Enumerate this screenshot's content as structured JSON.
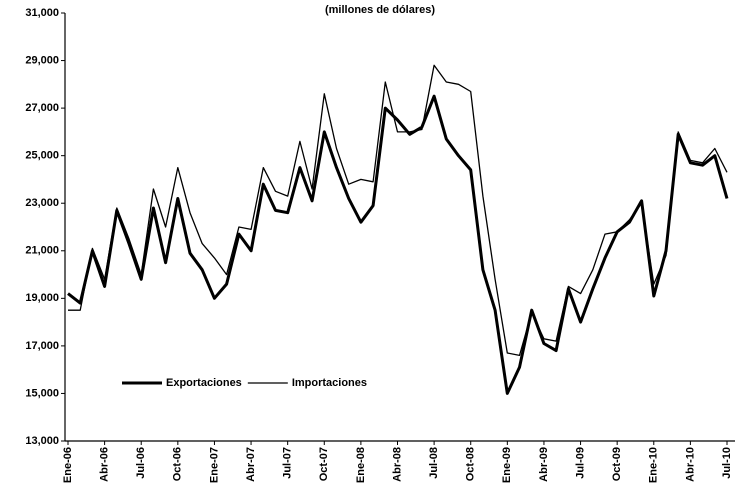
{
  "chart_data": {
    "type": "line",
    "title": "(millones de dólares)",
    "categories": [
      "Ene-06",
      null,
      null,
      "Abr-06",
      null,
      null,
      "Jul-06",
      null,
      null,
      "Oct-06",
      null,
      null,
      "Ene-07",
      null,
      null,
      "Abr-07",
      null,
      null,
      "Jul-07",
      null,
      null,
      "Oct-07",
      null,
      null,
      "Ene-08",
      null,
      null,
      "Abr-08",
      null,
      null,
      "Jul-08",
      null,
      null,
      "Oct-08",
      null,
      null,
      "Ene-09",
      null,
      null,
      "Abr-09",
      null,
      null,
      "Jul-09",
      null,
      null,
      "Oct-09",
      null,
      null,
      "Ene-10",
      null,
      null,
      "Abr-10",
      null,
      null,
      "Jul-10"
    ],
    "series": [
      {
        "name": "Exportaciones",
        "color": "#000000",
        "width": 3,
        "values": [
          19200,
          18800,
          21000,
          19500,
          22700,
          21300,
          19800,
          22800,
          20500,
          23200,
          20900,
          20200,
          19000,
          19600,
          21700,
          21000,
          23800,
          22700,
          22600,
          24500,
          23100,
          26000,
          24500,
          23200,
          22200,
          22900,
          27000,
          26500,
          25900,
          26200,
          27500,
          25700,
          25000,
          24400,
          20200,
          18500,
          15000,
          16100,
          18500,
          17100,
          16800,
          19400,
          18000,
          19400,
          20700,
          21800,
          22200,
          23100,
          19100,
          21000,
          25900,
          24700,
          24600,
          25000,
          23200
        ]
      },
      {
        "name": "Importaciones",
        "color": "#000000",
        "width": 1.3,
        "values": [
          18500,
          18500,
          21100,
          19800,
          22800,
          21500,
          20000,
          23600,
          22000,
          24500,
          22600,
          21300,
          20700,
          20000,
          22000,
          21900,
          24500,
          23500,
          23300,
          25600,
          23600,
          27600,
          25300,
          23800,
          24000,
          23900,
          28100,
          26000,
          26000,
          26100,
          28800,
          28100,
          28000,
          27700,
          23300,
          19800,
          16700,
          16600,
          18400,
          17300,
          17200,
          19500,
          19200,
          20200,
          21700,
          21800,
          22300,
          23000,
          19600,
          20800,
          26000,
          24800,
          24700,
          25300,
          24300
        ]
      }
    ],
    "ylim": [
      13000,
      31000
    ],
    "yticks": [
      {
        "value": 13000,
        "label": "13,000"
      },
      {
        "value": 15000,
        "label": "15,000"
      },
      {
        "value": 17000,
        "label": "17,000"
      },
      {
        "value": 19000,
        "label": "19,000"
      },
      {
        "value": 21000,
        "label": "21,000"
      },
      {
        "value": 23000,
        "label": "23,000"
      },
      {
        "value": 25000,
        "label": "25,000"
      },
      {
        "value": 27000,
        "label": "27,000"
      },
      {
        "value": 29000,
        "label": "29,000"
      },
      {
        "value": 31000,
        "label": "31,000"
      }
    ],
    "grid": false
  }
}
